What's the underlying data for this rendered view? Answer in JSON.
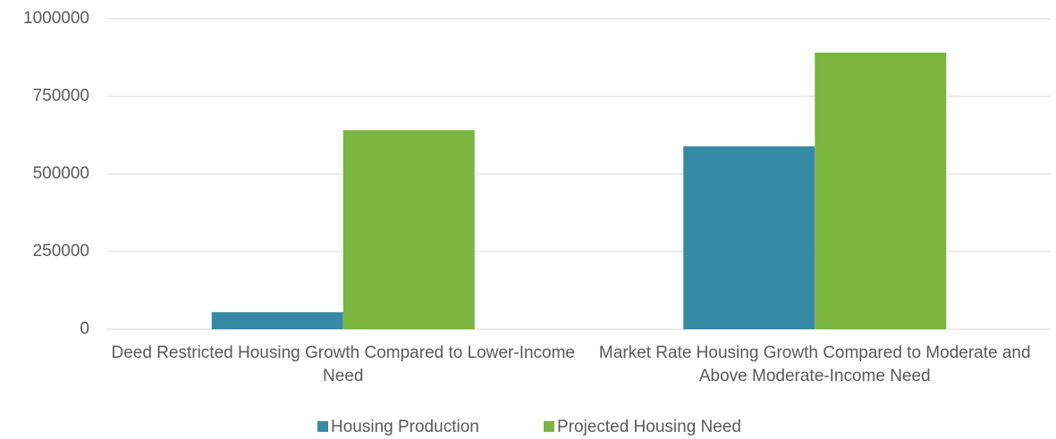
{
  "chart_data": {
    "type": "bar",
    "categories": [
      "Deed Restricted Housing Growth Compared to Lower-Income Need",
      "Market Rate Housing Growth Compared to Moderate and Above Moderate-Income Need"
    ],
    "series": [
      {
        "name": "Housing Production",
        "color": "#378aa5",
        "values": [
          55000,
          589000
        ]
      },
      {
        "name": "Projected Housing Need",
        "color": "#7ab53f",
        "values": [
          641000,
          891000
        ]
      }
    ],
    "ylim": [
      0,
      1000000
    ],
    "yticks": [
      0,
      250000,
      500000,
      750000,
      1000000
    ],
    "grid": true,
    "legend": "bottom"
  }
}
